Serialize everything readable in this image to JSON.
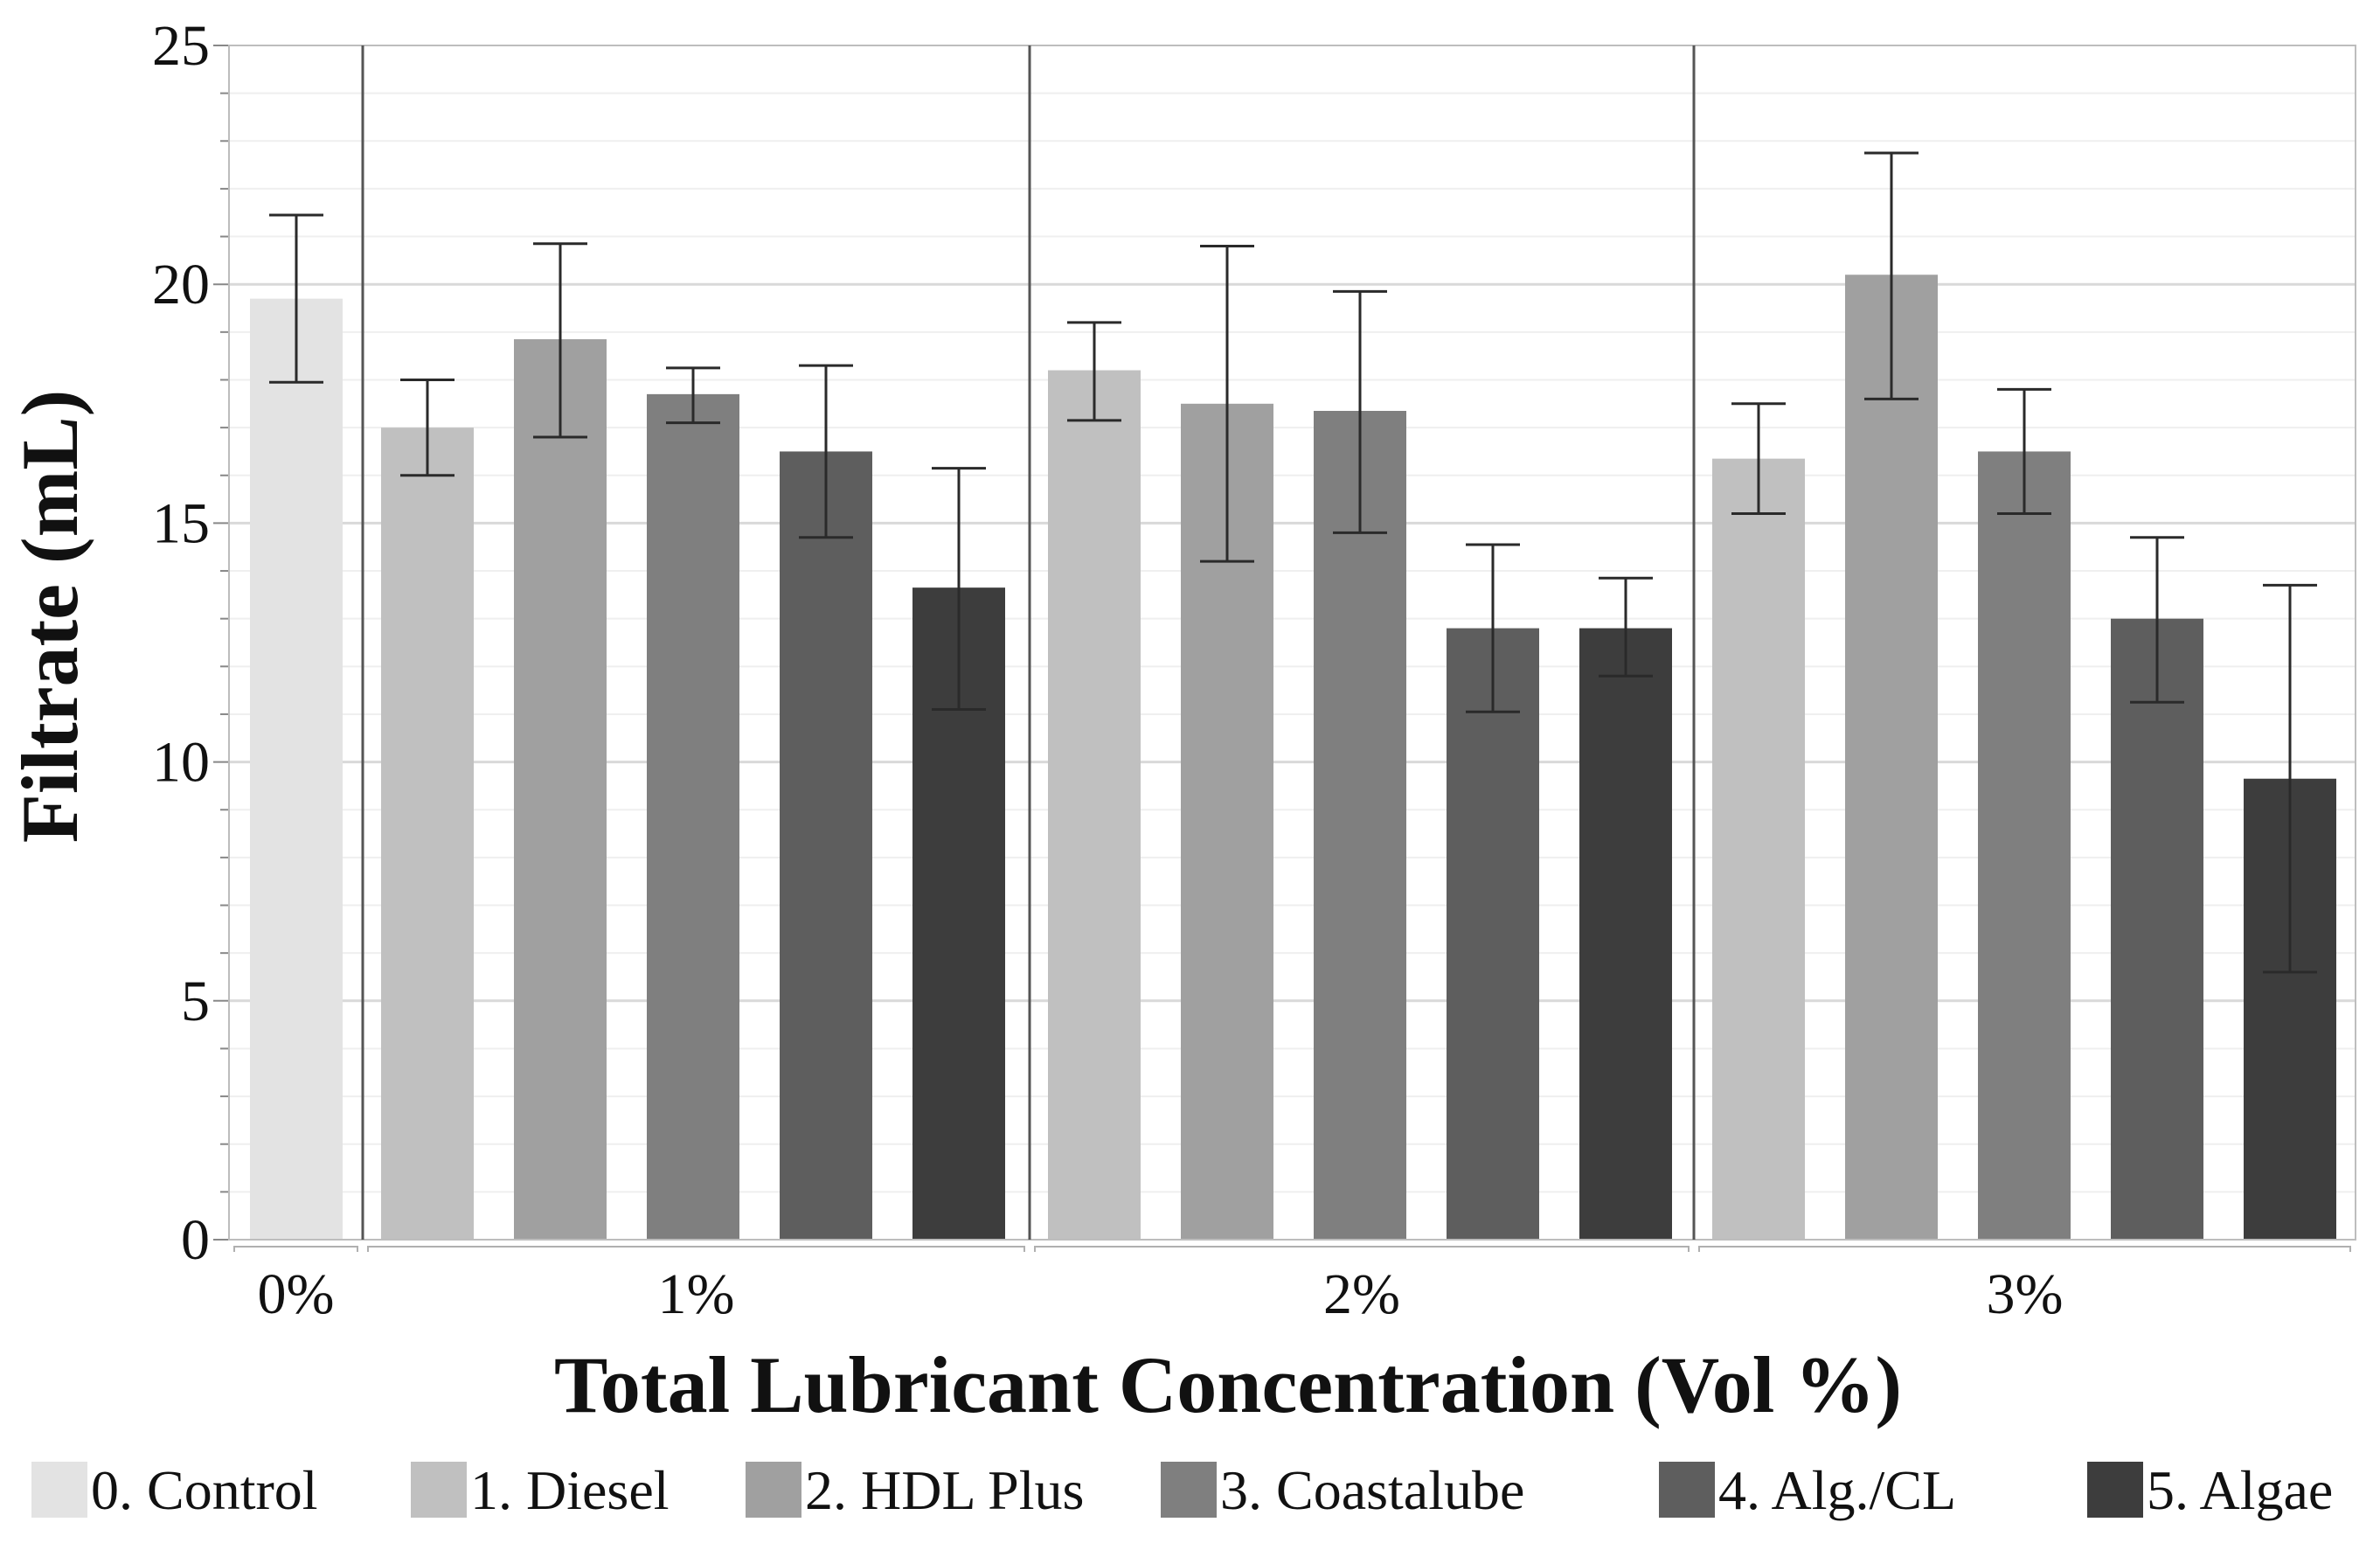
{
  "chart_data": {
    "type": "bar",
    "title": "",
    "xlabel": "Total Lubricant Concentration (Vol %)",
    "ylabel": "Filtrate (mL)",
    "ylim": [
      0,
      25
    ],
    "yticks": [
      0,
      5,
      10,
      15,
      20,
      25
    ],
    "grid": true,
    "legend_position": "bottom",
    "series_colors": {
      "0. Control": "#e3e3e3",
      "1. Diesel": "#c0c0c0",
      "2. HDL Plus": "#a0a0a0",
      "3. Coastalube": "#7f7f7f",
      "4. Alg./CL": "#5e5e5e",
      "5. Algae": "#3d3d3d"
    },
    "legend": [
      "0. Control",
      "1. Diesel",
      "2. HDL Plus",
      "3. Coastalube",
      "4. Alg./CL",
      "5. Algae"
    ],
    "groups": [
      {
        "label": "0%",
        "bars": [
          {
            "series": "0. Control",
            "value": 19.7,
            "err_low": 17.95,
            "err_high": 21.45
          }
        ]
      },
      {
        "label": "1%",
        "bars": [
          {
            "series": "1. Diesel",
            "value": 17.0,
            "err_low": 16.0,
            "err_high": 18.0
          },
          {
            "series": "2. HDL Plus",
            "value": 18.85,
            "err_low": 16.8,
            "err_high": 20.85
          },
          {
            "series": "3. Coastalube",
            "value": 17.7,
            "err_low": 17.1,
            "err_high": 18.25
          },
          {
            "series": "4. Alg./CL",
            "value": 16.5,
            "err_low": 14.7,
            "err_high": 18.3
          },
          {
            "series": "5. Algae",
            "value": 13.65,
            "err_low": 11.1,
            "err_high": 16.15
          }
        ]
      },
      {
        "label": "2%",
        "bars": [
          {
            "series": "1. Diesel",
            "value": 18.2,
            "err_low": 17.15,
            "err_high": 19.2
          },
          {
            "series": "2. HDL Plus",
            "value": 17.5,
            "err_low": 14.2,
            "err_high": 20.8
          },
          {
            "series": "3. Coastalube",
            "value": 17.35,
            "err_low": 14.8,
            "err_high": 19.85
          },
          {
            "series": "4. Alg./CL",
            "value": 12.8,
            "err_low": 11.05,
            "err_high": 14.55
          },
          {
            "series": "5. Algae",
            "value": 12.8,
            "err_low": 11.8,
            "err_high": 13.85
          }
        ]
      },
      {
        "label": "3%",
        "bars": [
          {
            "series": "1. Diesel",
            "value": 16.35,
            "err_low": 15.2,
            "err_high": 17.5
          },
          {
            "series": "2. HDL Plus",
            "value": 20.2,
            "err_low": 17.6,
            "err_high": 22.75
          },
          {
            "series": "3. Coastalube",
            "value": 16.5,
            "err_low": 15.2,
            "err_high": 17.8
          },
          {
            "series": "4. Alg./CL",
            "value": 13.0,
            "err_low": 11.25,
            "err_high": 14.7
          },
          {
            "series": "5. Algae",
            "value": 9.65,
            "err_low": 5.6,
            "err_high": 13.7
          }
        ]
      }
    ]
  }
}
